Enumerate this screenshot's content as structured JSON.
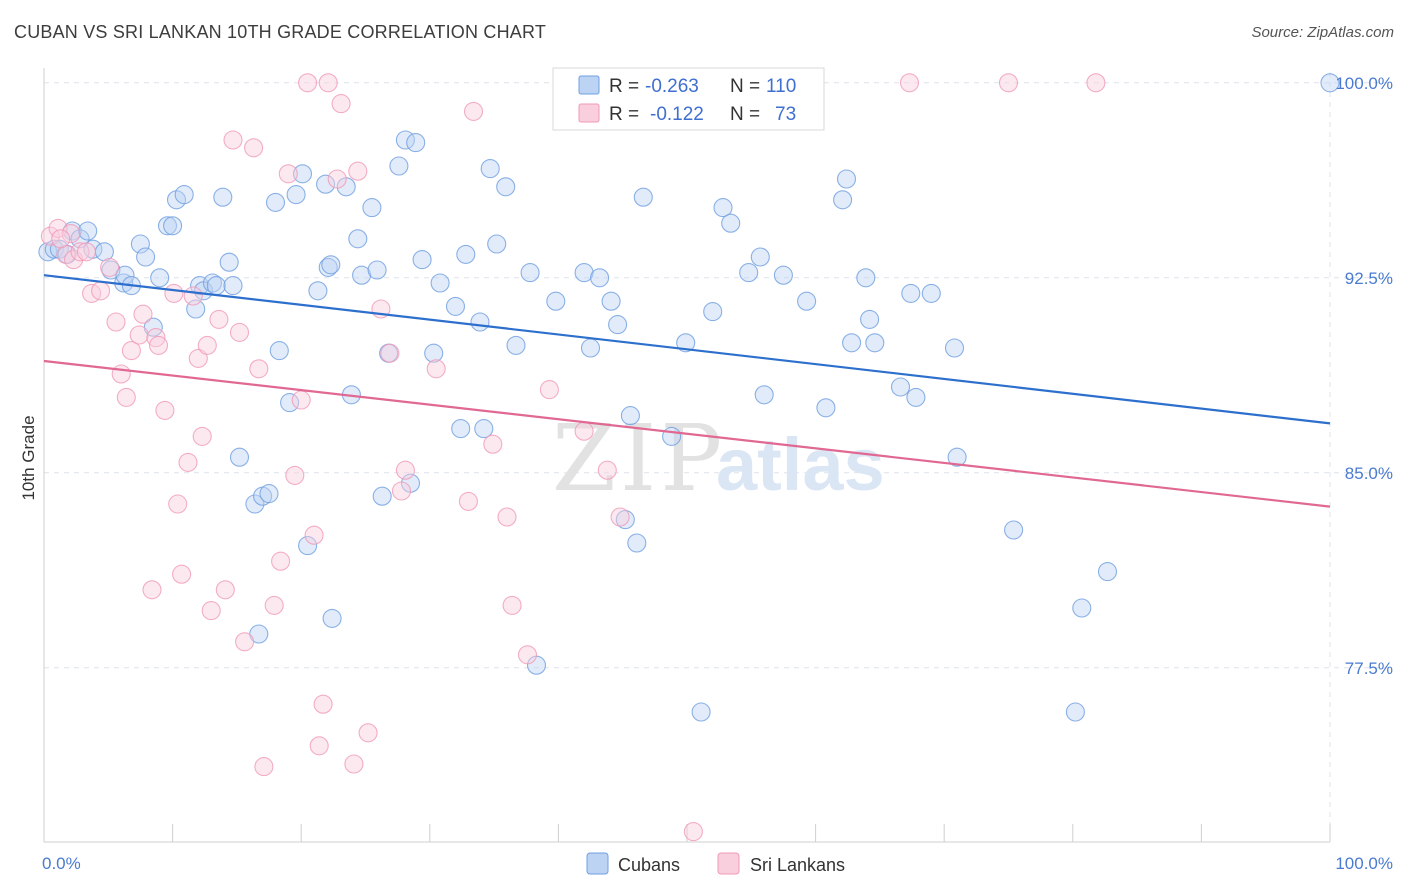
{
  "header": {
    "title": "CUBAN VS SRI LANKAN 10TH GRADE CORRELATION CHART",
    "source": "Source: ZipAtlas.com"
  },
  "watermark": {
    "zip": "ZIP",
    "atlas": "atlas"
  },
  "colors": {
    "cubans": "#6f9fe0",
    "cubans_fill": "#bcd3f3",
    "cubans_line": "#2d6fcc",
    "srilankans": "#f09ab8",
    "srilankans_fill": "#f9cfdd",
    "srilankans_line": "#e06892",
    "grid": "#dde3ec",
    "axis_text": "#4a7bd0"
  },
  "legend": {
    "r_label": "R =",
    "n_label": "N =",
    "rows": [
      {
        "series": "Cubans",
        "r": "-0.263",
        "n": "110"
      },
      {
        "series": "Sri Lankans",
        "r": "-0.122",
        "n": "73"
      }
    ]
  },
  "bottom_legend": [
    "Cubans",
    "Sri Lankans"
  ],
  "chart_data": {
    "type": "scatter",
    "title": "CUBAN VS SRI LANKAN 10TH GRADE CORRELATION CHART",
    "xlabel": "",
    "ylabel": "10th Grade",
    "xlim": [
      0,
      100
    ],
    "ylim": [
      70.8,
      100.8
    ],
    "x_tick_labels": [
      "0.0%",
      "100.0%"
    ],
    "y_ticks": [
      77.5,
      85.0,
      92.5,
      100.0
    ],
    "y_tick_labels": [
      "77.5%",
      "85.0%",
      "92.5%",
      "100.0%"
    ],
    "grid": true,
    "legend_position": "top-center",
    "series": [
      {
        "name": "Cubans",
        "trend": {
          "x": [
            0,
            100
          ],
          "y": [
            92.6,
            86.9
          ]
        },
        "points": [
          [
            0.3,
            93.5
          ],
          [
            0.8,
            93.6
          ],
          [
            1.2,
            93.6
          ],
          [
            1.8,
            93.4
          ],
          [
            2.2,
            94.3
          ],
          [
            2.8,
            94.0
          ],
          [
            3.4,
            94.3
          ],
          [
            3.8,
            93.6
          ],
          [
            4.7,
            93.5
          ],
          [
            5.2,
            92.8
          ],
          [
            6.2,
            92.3
          ],
          [
            6.3,
            92.6
          ],
          [
            6.8,
            92.2
          ],
          [
            7.5,
            93.8
          ],
          [
            7.9,
            93.3
          ],
          [
            8.5,
            90.6
          ],
          [
            9.0,
            92.5
          ],
          [
            9.6,
            94.5
          ],
          [
            10.0,
            94.5
          ],
          [
            10.3,
            95.5
          ],
          [
            10.9,
            95.7
          ],
          [
            11.8,
            91.3
          ],
          [
            12.1,
            92.2
          ],
          [
            12.4,
            92.0
          ],
          [
            13.1,
            92.3
          ],
          [
            13.4,
            92.2
          ],
          [
            13.9,
            95.6
          ],
          [
            14.4,
            93.1
          ],
          [
            14.7,
            92.2
          ],
          [
            15.2,
            85.6
          ],
          [
            16.4,
            83.8
          ],
          [
            16.7,
            78.8
          ],
          [
            17.0,
            84.1
          ],
          [
            17.5,
            84.2
          ],
          [
            18.0,
            95.4
          ],
          [
            18.3,
            89.7
          ],
          [
            19.1,
            87.7
          ],
          [
            19.6,
            95.7
          ],
          [
            20.1,
            96.5
          ],
          [
            20.5,
            82.2
          ],
          [
            21.3,
            92.0
          ],
          [
            21.9,
            96.1
          ],
          [
            22.1,
            92.9
          ],
          [
            22.4,
            79.4
          ],
          [
            23.5,
            96.0
          ],
          [
            23.9,
            88.0
          ],
          [
            24.4,
            94.0
          ],
          [
            24.7,
            92.6
          ],
          [
            25.5,
            95.2
          ],
          [
            25.9,
            92.8
          ],
          [
            26.3,
            84.1
          ],
          [
            26.8,
            89.6
          ],
          [
            27.6,
            96.8
          ],
          [
            28.1,
            97.8
          ],
          [
            28.5,
            84.6
          ],
          [
            28.9,
            97.7
          ],
          [
            29.4,
            93.2
          ],
          [
            30.3,
            89.6
          ],
          [
            30.8,
            92.3
          ],
          [
            32.0,
            91.4
          ],
          [
            32.4,
            86.7
          ],
          [
            32.8,
            93.4
          ],
          [
            33.9,
            90.8
          ],
          [
            34.2,
            86.7
          ],
          [
            34.7,
            96.7
          ],
          [
            35.2,
            93.8
          ],
          [
            35.9,
            96.0
          ],
          [
            36.7,
            89.9
          ],
          [
            37.8,
            92.7
          ],
          [
            38.3,
            77.6
          ],
          [
            39.8,
            91.6
          ],
          [
            42.0,
            92.7
          ],
          [
            42.5,
            89.8
          ],
          [
            43.2,
            92.5
          ],
          [
            44.1,
            91.6
          ],
          [
            44.6,
            90.7
          ],
          [
            45.2,
            83.2
          ],
          [
            45.6,
            87.2
          ],
          [
            46.1,
            82.3
          ],
          [
            46.6,
            95.6
          ],
          [
            48.8,
            86.4
          ],
          [
            49.9,
            90.0
          ],
          [
            51.1,
            75.8
          ],
          [
            52.0,
            91.2
          ],
          [
            52.8,
            95.2
          ],
          [
            53.4,
            94.6
          ],
          [
            54.8,
            92.7
          ],
          [
            55.7,
            93.3
          ],
          [
            56.0,
            88.0
          ],
          [
            57.5,
            92.6
          ],
          [
            59.3,
            91.6
          ],
          [
            60.8,
            87.5
          ],
          [
            62.1,
            95.5
          ],
          [
            62.4,
            96.3
          ],
          [
            62.8,
            90.0
          ],
          [
            63.9,
            92.5
          ],
          [
            64.2,
            90.9
          ],
          [
            64.6,
            90.0
          ],
          [
            66.6,
            88.3
          ],
          [
            67.4,
            91.9
          ],
          [
            67.8,
            87.9
          ],
          [
            69.0,
            91.9
          ],
          [
            70.8,
            89.8
          ],
          [
            71.0,
            85.6
          ],
          [
            75.4,
            82.8
          ],
          [
            80.2,
            75.8
          ],
          [
            80.7,
            79.8
          ],
          [
            82.7,
            81.2
          ],
          [
            100.0,
            100.0
          ],
          [
            22.3,
            93.0
          ]
        ]
      },
      {
        "name": "Sri Lankans",
        "trend": {
          "x": [
            0,
            100
          ],
          "y": [
            89.3,
            83.7
          ]
        },
        "points": [
          [
            0.5,
            94.1
          ],
          [
            1.1,
            94.4
          ],
          [
            1.7,
            93.4
          ],
          [
            2.3,
            93.2
          ],
          [
            2.8,
            93.5
          ],
          [
            3.3,
            93.5
          ],
          [
            3.7,
            91.9
          ],
          [
            4.4,
            92.0
          ],
          [
            5.1,
            92.9
          ],
          [
            5.6,
            90.8
          ],
          [
            6.0,
            88.8
          ],
          [
            6.4,
            87.9
          ],
          [
            6.8,
            89.7
          ],
          [
            7.4,
            90.3
          ],
          [
            7.7,
            91.1
          ],
          [
            8.4,
            80.5
          ],
          [
            8.7,
            90.2
          ],
          [
            8.9,
            89.9
          ],
          [
            9.4,
            87.4
          ],
          [
            10.1,
            91.9
          ],
          [
            10.4,
            83.8
          ],
          [
            10.7,
            81.1
          ],
          [
            11.2,
            85.4
          ],
          [
            11.6,
            91.8
          ],
          [
            12.0,
            89.4
          ],
          [
            12.3,
            86.4
          ],
          [
            12.7,
            89.9
          ],
          [
            13.0,
            79.7
          ],
          [
            13.6,
            90.9
          ],
          [
            14.1,
            80.5
          ],
          [
            14.7,
            97.8
          ],
          [
            15.2,
            90.4
          ],
          [
            15.6,
            78.5
          ],
          [
            16.3,
            97.5
          ],
          [
            16.7,
            89.0
          ],
          [
            17.1,
            73.7
          ],
          [
            17.9,
            79.9
          ],
          [
            18.4,
            81.6
          ],
          [
            19.0,
            96.5
          ],
          [
            19.5,
            84.9
          ],
          [
            20.0,
            87.8
          ],
          [
            20.5,
            100.0
          ],
          [
            21.0,
            82.6
          ],
          [
            21.4,
            74.5
          ],
          [
            21.7,
            76.1
          ],
          [
            22.1,
            100.0
          ],
          [
            22.8,
            96.3
          ],
          [
            23.1,
            99.2
          ],
          [
            24.1,
            73.8
          ],
          [
            24.4,
            96.6
          ],
          [
            25.2,
            75.0
          ],
          [
            26.2,
            91.3
          ],
          [
            26.9,
            89.6
          ],
          [
            27.8,
            84.3
          ],
          [
            28.1,
            85.1
          ],
          [
            30.5,
            89.0
          ],
          [
            33.0,
            83.9
          ],
          [
            33.4,
            98.9
          ],
          [
            34.9,
            86.1
          ],
          [
            36.0,
            83.3
          ],
          [
            36.4,
            79.9
          ],
          [
            37.6,
            78.0
          ],
          [
            39.3,
            88.2
          ],
          [
            40.6,
            100.0
          ],
          [
            42.0,
            86.6
          ],
          [
            43.8,
            85.1
          ],
          [
            44.8,
            83.3
          ],
          [
            50.5,
            71.2
          ],
          [
            67.3,
            100.0
          ],
          [
            75.0,
            100.0
          ],
          [
            81.8,
            100.0
          ],
          [
            2.1,
            94.2
          ],
          [
            1.3,
            94.0
          ]
        ]
      }
    ]
  }
}
